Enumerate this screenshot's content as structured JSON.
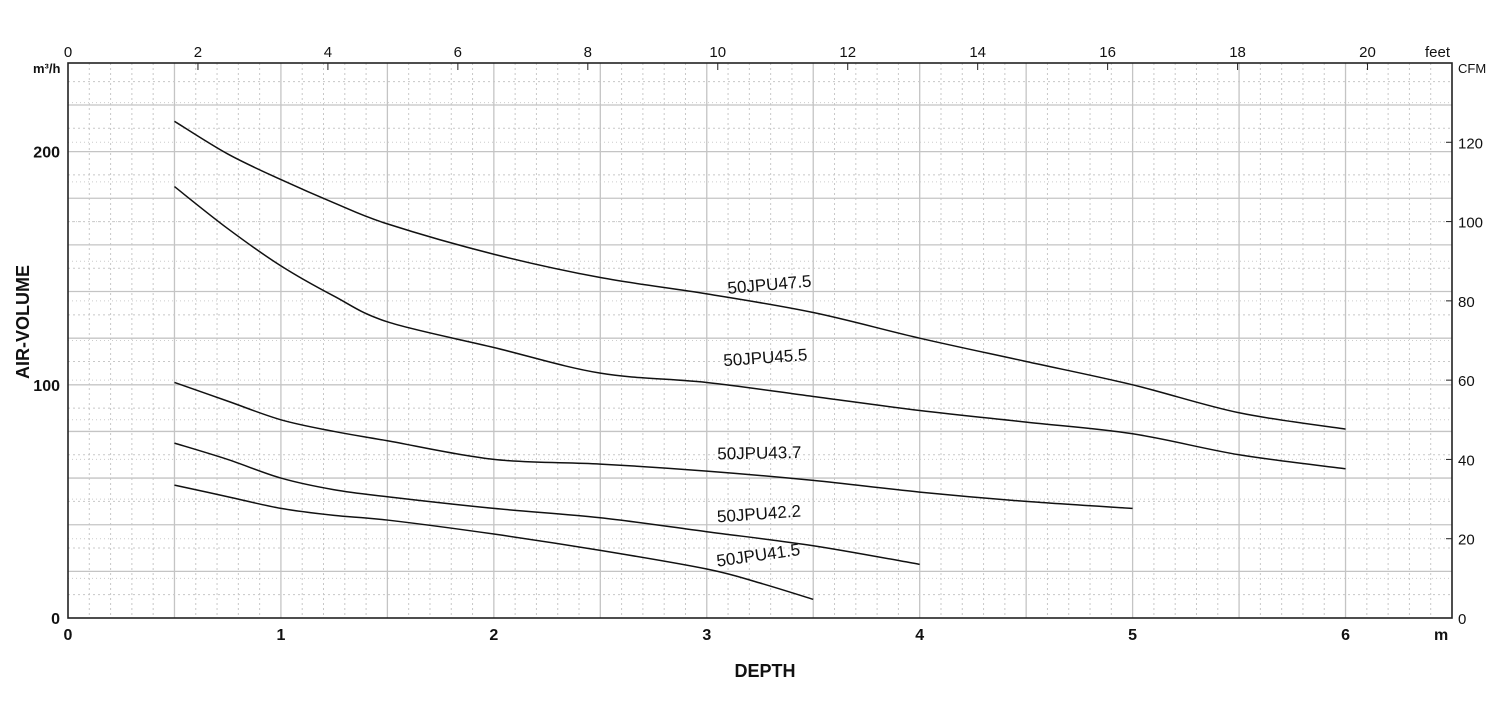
{
  "chart_data": {
    "type": "line",
    "xlabel": "DEPTH",
    "ylabel": "AIR-VOLUME",
    "x_unit": "m",
    "y_unit": "m³/h",
    "top_axis_unit": "feet",
    "right_axis_unit": "CFM",
    "xlim": [
      0,
      6.5
    ],
    "ylim": [
      0,
      238
    ],
    "top_axis_lim": [
      0,
      21.3
    ],
    "right_axis_lim": [
      0,
      140
    ],
    "x_ticks": [
      0,
      1,
      2,
      3,
      4,
      5,
      6
    ],
    "x_tick_labels": [
      "0",
      "1",
      "2",
      "3",
      "4",
      "5",
      "6"
    ],
    "y_ticks": [
      0,
      100,
      200
    ],
    "y_tick_labels": [
      "0",
      "100",
      "200"
    ],
    "top_ticks": [
      0,
      2,
      4,
      6,
      8,
      10,
      12,
      14,
      16,
      18,
      20
    ],
    "top_tick_labels": [
      "0",
      "2",
      "4",
      "6",
      "8",
      "10",
      "12",
      "14",
      "16",
      "18",
      "20"
    ],
    "right_ticks": [
      0,
      20,
      40,
      60,
      80,
      100,
      120
    ],
    "right_tick_labels": [
      "0",
      "20",
      "40",
      "60",
      "80",
      "100",
      "120"
    ],
    "grid": true,
    "series": [
      {
        "name": "50JPU47.5",
        "x": [
          0.5,
          0.75,
          1.0,
          1.25,
          1.5,
          2.0,
          2.5,
          3.0,
          3.5,
          4.0,
          4.5,
          5.0,
          5.5,
          6.0
        ],
        "y": [
          213,
          199,
          188,
          178,
          169,
          156,
          146,
          139,
          131,
          120,
          110,
          100,
          88,
          81
        ]
      },
      {
        "name": "50JPU45.5",
        "x": [
          0.5,
          0.75,
          1.0,
          1.25,
          1.5,
          2.0,
          2.5,
          3.0,
          3.5,
          4.0,
          4.5,
          5.0,
          5.5,
          6.0
        ],
        "y": [
          185,
          167,
          151,
          138,
          127,
          116,
          105,
          101,
          95,
          89,
          84,
          79,
          70,
          64
        ]
      },
      {
        "name": "50JPU43.7",
        "x": [
          0.5,
          0.75,
          1.0,
          1.25,
          1.5,
          2.0,
          2.5,
          3.0,
          3.5,
          4.0,
          4.5,
          5.0
        ],
        "y": [
          101,
          93,
          85,
          80,
          76,
          68,
          66,
          63,
          59,
          54,
          50,
          47
        ]
      },
      {
        "name": "50JPU42.2",
        "x": [
          0.5,
          0.75,
          1.0,
          1.25,
          1.5,
          2.0,
          2.5,
          3.0,
          3.5,
          4.0
        ],
        "y": [
          75,
          68,
          60,
          55,
          52,
          47,
          43,
          37,
          31,
          23
        ]
      },
      {
        "name": "50JPU41.5",
        "x": [
          0.5,
          0.75,
          1.0,
          1.25,
          1.5,
          2.0,
          2.5,
          3.0,
          3.25,
          3.5
        ],
        "y": [
          57,
          52,
          47,
          44,
          42,
          36,
          29,
          21,
          15,
          8
        ]
      }
    ],
    "series_label_positions": [
      {
        "x": 3.1,
        "y": 139
      },
      {
        "x": 3.08,
        "y": 108
      },
      {
        "x": 3.05,
        "y": 68
      },
      {
        "x": 3.05,
        "y": 41
      },
      {
        "x": 3.05,
        "y": 22
      }
    ],
    "series_label_angles": [
      -5,
      -4,
      -1,
      -4,
      -8
    ]
  }
}
